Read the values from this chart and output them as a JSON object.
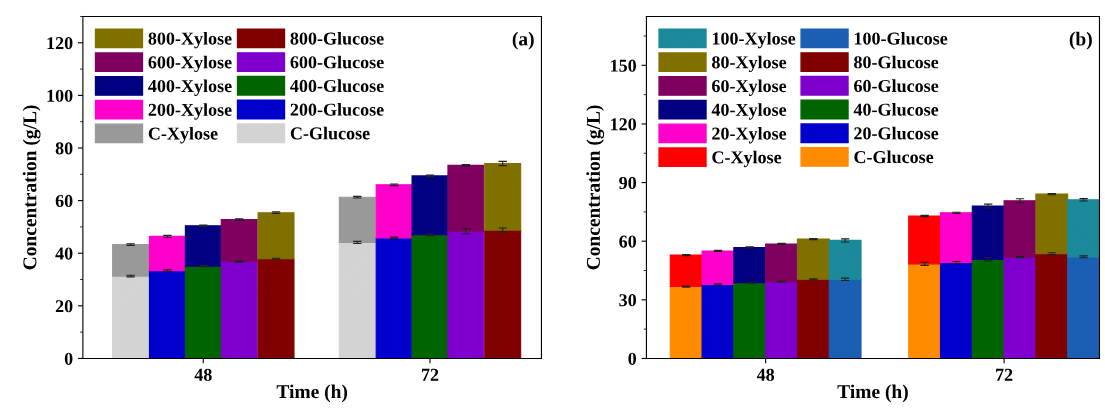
{
  "chart_data": [
    {
      "type": "bar",
      "stacked": true,
      "xlabel": "Time (h)",
      "ylabel": "Concentration (g/L)",
      "annotations": [
        "(a)"
      ],
      "legend": "top left",
      "grid": false,
      "xlim": [
        35.25,
        83.8
      ],
      "xticks": [
        48,
        72
      ],
      "ylim": [
        0,
        130
      ],
      "yticks": [
        0,
        20,
        40,
        60,
        80,
        100,
        120
      ],
      "x": [
        40.3,
        44.2,
        48,
        51.8,
        55.7,
        64.3,
        68.2,
        72,
        75.8,
        79.7
      ],
      "series": [
        {
          "name": "C-Glucose",
          "color": "#d3d3d3",
          "values": [
            31.3,
            null,
            null,
            null,
            null,
            44.1,
            null,
            null,
            null,
            null
          ],
          "errors": [
            0.3,
            null,
            null,
            null,
            null,
            0.4,
            null,
            null,
            null,
            null
          ]
        },
        {
          "name": "C-Xylose",
          "color": "#999999",
          "values": [
            12.0,
            null,
            null,
            null,
            null,
            17.2,
            null,
            null,
            null,
            null
          ],
          "errors": [
            0.3,
            null,
            null,
            null,
            null,
            0.3,
            null,
            null,
            null,
            null
          ]
        },
        {
          "name": "200-Glucose",
          "color": "#0000cc",
          "values": [
            null,
            33.4,
            null,
            null,
            null,
            null,
            45.8,
            null,
            null,
            null
          ],
          "errors": [
            null,
            0.3,
            null,
            null,
            null,
            null,
            0.3,
            null,
            null,
            null
          ]
        },
        {
          "name": "200-Xylose",
          "color": "#ff00cc",
          "values": [
            null,
            13.0,
            null,
            null,
            null,
            null,
            20.2,
            null,
            null,
            null
          ],
          "errors": [
            null,
            0.4,
            null,
            null,
            null,
            null,
            0.3,
            null,
            null,
            null
          ]
        },
        {
          "name": "400-Glucose",
          "color": "#006400",
          "values": [
            null,
            null,
            35.1,
            null,
            null,
            null,
            null,
            47.0,
            null,
            null
          ],
          "errors": [
            null,
            null,
            0.2,
            null,
            null,
            null,
            null,
            0.3,
            null,
            null
          ]
        },
        {
          "name": "400-Xylose",
          "color": "#000080",
          "values": [
            null,
            null,
            15.3,
            null,
            null,
            null,
            null,
            22.4,
            null,
            null
          ],
          "errors": [
            null,
            null,
            0.3,
            null,
            null,
            null,
            null,
            0.3,
            null,
            null
          ]
        },
        {
          "name": "600-Glucose",
          "color": "#7f00cc",
          "values": [
            null,
            null,
            null,
            36.9,
            null,
            null,
            null,
            null,
            48.4,
            null
          ],
          "errors": [
            null,
            null,
            null,
            0.3,
            null,
            null,
            null,
            null,
            1.0,
            null
          ]
        },
        {
          "name": "600-Xylose",
          "color": "#800060",
          "values": [
            null,
            null,
            null,
            15.9,
            null,
            null,
            null,
            null,
            25.0,
            null
          ],
          "errors": [
            null,
            null,
            null,
            0.3,
            null,
            null,
            null,
            null,
            0.3,
            null
          ]
        },
        {
          "name": "800-Glucose",
          "color": "#800000",
          "values": [
            null,
            null,
            null,
            null,
            37.9,
            null,
            null,
            null,
            null,
            48.8
          ],
          "errors": [
            null,
            null,
            null,
            null,
            0.2,
            null,
            null,
            null,
            null,
            0.8
          ]
        },
        {
          "name": "800-Xylose",
          "color": "#807000",
          "values": [
            null,
            null,
            null,
            null,
            17.5,
            null,
            null,
            null,
            null,
            25.3
          ],
          "errors": [
            null,
            null,
            null,
            null,
            0.3,
            null,
            null,
            null,
            null,
            0.8
          ]
        }
      ]
    },
    {
      "type": "bar",
      "stacked": true,
      "xlabel": "Time (h)",
      "ylabel": "Concentration (g/L)",
      "annotations": [
        "(b)"
      ],
      "legend": "top left",
      "grid": false,
      "xlim": [
        36.0,
        81.6
      ],
      "xticks": [
        48,
        72
      ],
      "ylim": [
        0,
        175
      ],
      "yticks": [
        0,
        30,
        60,
        90,
        120,
        150
      ],
      "x": [
        40.0,
        43.2,
        46.4,
        49.6,
        52.8,
        56.0,
        64.0,
        67.2,
        70.4,
        73.6,
        76.8,
        80.0
      ],
      "series": [
        {
          "name": "C-Glucose",
          "color": "#ff8c00",
          "values": [
            36.8,
            null,
            null,
            null,
            null,
            null,
            48.4,
            null,
            null,
            null,
            null,
            null
          ],
          "errors": [
            0.3,
            null,
            null,
            null,
            null,
            null,
            0.8,
            null,
            null,
            null,
            null,
            null
          ]
        },
        {
          "name": "C-Xylose",
          "color": "#ff0000",
          "values": [
            16.1,
            null,
            null,
            null,
            null,
            null,
            24.5,
            null,
            null,
            null,
            null,
            null
          ],
          "errors": [
            0.3,
            null,
            null,
            null,
            null,
            null,
            0.3,
            null,
            null,
            null,
            null,
            null
          ]
        },
        {
          "name": "20-Glucose",
          "color": "#0000cc",
          "values": [
            null,
            37.9,
            null,
            null,
            null,
            null,
            null,
            49.1,
            null,
            null,
            null,
            null
          ],
          "errors": [
            null,
            0.3,
            null,
            null,
            null,
            null,
            null,
            0.5,
            null,
            null,
            null,
            null
          ]
        },
        {
          "name": "20-Xylose",
          "color": "#ff00cc",
          "values": [
            null,
            17.1,
            null,
            null,
            null,
            null,
            null,
            25.4,
            null,
            null,
            null,
            null
          ],
          "errors": [
            null,
            0.3,
            null,
            null,
            null,
            null,
            null,
            0.3,
            null,
            null,
            null,
            null
          ]
        },
        {
          "name": "40-Glucose",
          "color": "#006400",
          "values": [
            null,
            null,
            38.8,
            null,
            null,
            null,
            null,
            null,
            50.7,
            null,
            null,
            null
          ],
          "errors": [
            null,
            null,
            0.3,
            null,
            null,
            null,
            null,
            null,
            0.8,
            null,
            null,
            null
          ]
        },
        {
          "name": "40-Xylose",
          "color": "#000080",
          "values": [
            null,
            null,
            18.0,
            null,
            null,
            null,
            null,
            null,
            27.3,
            null,
            null,
            null
          ],
          "errors": [
            null,
            null,
            0.3,
            null,
            null,
            null,
            null,
            null,
            1.0,
            null,
            null,
            null
          ]
        },
        {
          "name": "60-Glucose",
          "color": "#7f00cc",
          "values": [
            null,
            null,
            null,
            39.3,
            null,
            null,
            null,
            null,
            null,
            51.8,
            null,
            null
          ],
          "errors": [
            null,
            null,
            null,
            0.3,
            null,
            null,
            null,
            null,
            null,
            0.3,
            null,
            null
          ]
        },
        {
          "name": "60-Xylose",
          "color": "#800060",
          "values": [
            null,
            null,
            null,
            19.3,
            null,
            null,
            null,
            null,
            null,
            28.9,
            null,
            null
          ],
          "errors": [
            null,
            null,
            null,
            0.3,
            null,
            null,
            null,
            null,
            null,
            1.0,
            null,
            null
          ]
        },
        {
          "name": "80-Glucose",
          "color": "#800000",
          "values": [
            null,
            null,
            null,
            null,
            40.5,
            null,
            null,
            null,
            null,
            null,
            53.6,
            null
          ],
          "errors": [
            null,
            null,
            null,
            null,
            0.3,
            null,
            null,
            null,
            null,
            null,
            0.5,
            null
          ]
        },
        {
          "name": "80-Xylose",
          "color": "#807000",
          "values": [
            null,
            null,
            null,
            null,
            20.6,
            null,
            null,
            null,
            null,
            null,
            30.5,
            null
          ],
          "errors": [
            null,
            null,
            null,
            null,
            0.3,
            null,
            null,
            null,
            null,
            null,
            0.3,
            null
          ]
        },
        {
          "name": "100-Glucose",
          "color": "#1a5fb4",
          "values": [
            null,
            null,
            null,
            null,
            null,
            40.5,
            null,
            null,
            null,
            null,
            null,
            52.0
          ],
          "errors": [
            null,
            null,
            null,
            null,
            null,
            0.6,
            null,
            null,
            null,
            null,
            null,
            0.5
          ]
        },
        {
          "name": "100-Xylose",
          "color": "#1a8a9a",
          "values": [
            null,
            null,
            null,
            null,
            null,
            19.9,
            null,
            null,
            null,
            null,
            null,
            29.2
          ],
          "errors": [
            null,
            null,
            null,
            null,
            null,
            0.8,
            null,
            null,
            null,
            null,
            null,
            0.6
          ]
        }
      ]
    }
  ]
}
